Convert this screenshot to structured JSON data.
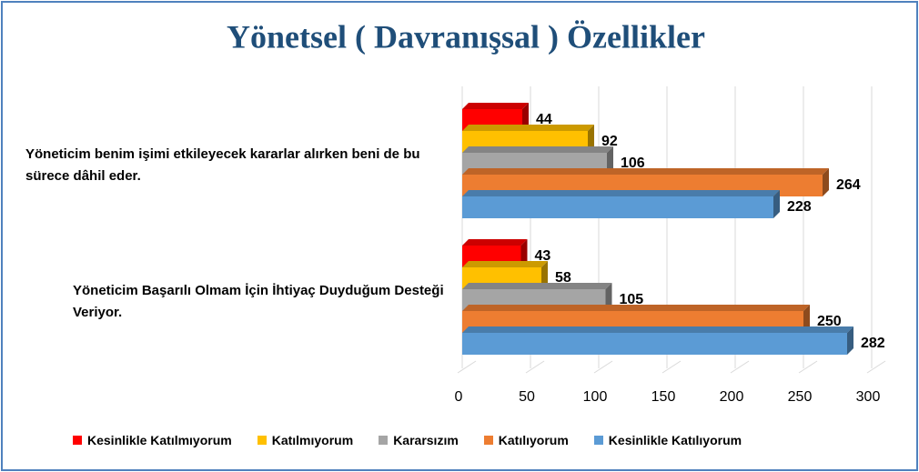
{
  "chart_data": {
    "type": "bar",
    "orientation": "horizontal",
    "title": "Yönetsel ( Davranışsal ) Özellikler",
    "categories": [
      "Yöneticim benim işimi etkileyecek kararlar alırken beni de bu sürece dâhil eder.",
      "Yöneticim Başarılı Olmam İçin İhtiyaç Duyduğum Desteği Veriyor."
    ],
    "series": [
      {
        "name": "Kesinlikle Katılmıyorum",
        "color": "#ff0000",
        "values": [
          44,
          43
        ]
      },
      {
        "name": "Katılmıyorum",
        "color": "#ffc000",
        "values": [
          92,
          58
        ]
      },
      {
        "name": "Kararsızım",
        "color": "#a5a5a5",
        "values": [
          106,
          105
        ]
      },
      {
        "name": "Katılıyorum",
        "color": "#ed7d31",
        "values": [
          264,
          250
        ]
      },
      {
        "name": "Kesinlikle Katılıyorum",
        "color": "#5b9bd5",
        "values": [
          228,
          282
        ]
      }
    ],
    "xlim": [
      0,
      300
    ],
    "xticks": [
      0,
      50,
      100,
      150,
      200,
      250,
      300
    ],
    "grid": true,
    "legend": "bottom"
  }
}
